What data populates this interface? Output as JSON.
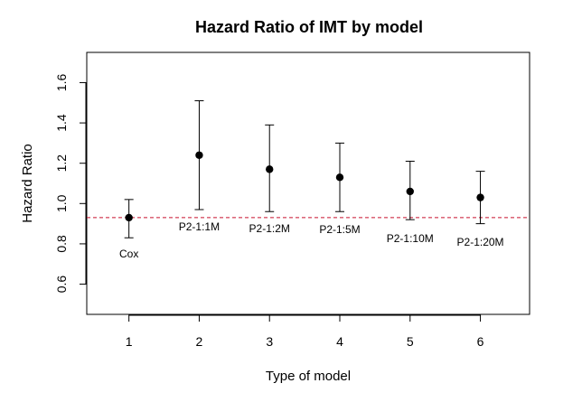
{
  "chart_data": {
    "type": "scatter",
    "title": "Hazard Ratio of IMT by model",
    "xlabel": "Type of model",
    "ylabel": "Hazard Ratio",
    "xlim": [
      0.4,
      6.7
    ],
    "ylim": [
      0.45,
      1.75
    ],
    "x_ticks": [
      1,
      2,
      3,
      4,
      5,
      6
    ],
    "x_tick_labels": [
      "1",
      "2",
      "3",
      "4",
      "5",
      "6"
    ],
    "y_ticks": [
      0.6,
      0.8,
      1.0,
      1.2,
      1.4,
      1.6
    ],
    "y_tick_labels": [
      "0.6",
      "0.8",
      "1.0",
      "1.2",
      "1.4",
      "1.6"
    ],
    "reference_line": {
      "y": 0.93,
      "style": "dashed",
      "color": "#c8102e"
    },
    "points": [
      {
        "x": 1,
        "estimate": 0.93,
        "lower": 0.83,
        "upper": 1.02,
        "label": "Cox"
      },
      {
        "x": 2,
        "estimate": 1.24,
        "lower": 0.97,
        "upper": 1.51,
        "label": "P2-1:1M"
      },
      {
        "x": 3,
        "estimate": 1.17,
        "lower": 0.96,
        "upper": 1.39,
        "label": "P2-1:2M"
      },
      {
        "x": 4,
        "estimate": 1.13,
        "lower": 0.96,
        "upper": 1.3,
        "label": "P2-1:5M"
      },
      {
        "x": 5,
        "estimate": 1.06,
        "lower": 0.92,
        "upper": 1.21,
        "label": "P2-1:10M"
      },
      {
        "x": 6,
        "estimate": 1.03,
        "lower": 0.9,
        "upper": 1.16,
        "label": "P2-1:20M"
      }
    ]
  }
}
